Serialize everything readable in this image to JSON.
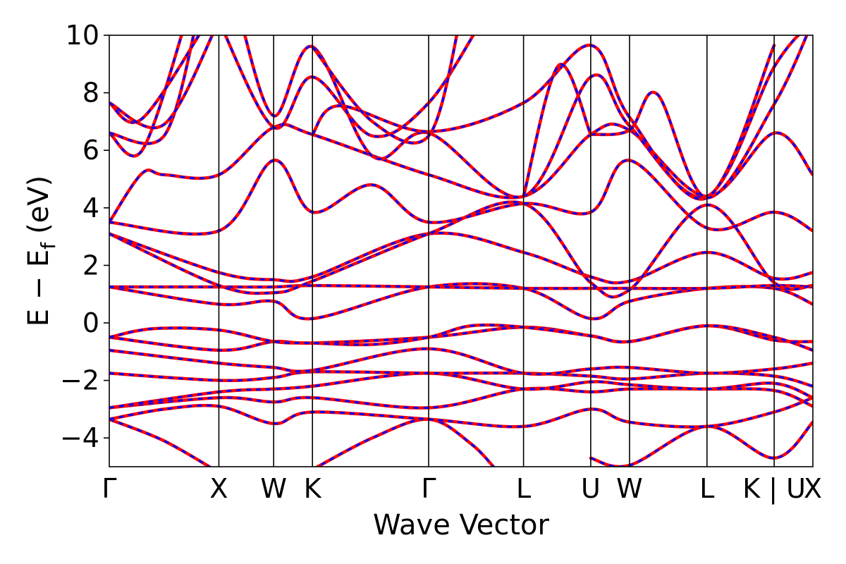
{
  "chart_data": {
    "type": "line",
    "title": "",
    "xlabel": "Wave Vector",
    "ylabel_main": "E − E",
    "ylabel_sub": "f",
    "ylabel_unit": "(eV)",
    "ylim": [
      -5,
      10
    ],
    "yticks": [
      -4,
      -2,
      0,
      2,
      4,
      6,
      8,
      10
    ],
    "ytick_labels": [
      "−4",
      "−2",
      "0",
      "2",
      "4",
      "6",
      "8",
      "10"
    ],
    "kpath": [
      {
        "label": "Γ",
        "k": 0.0
      },
      {
        "label": "X",
        "k": 1.0
      },
      {
        "label": "W",
        "k": 1.5
      },
      {
        "label": "K",
        "k": 1.854
      },
      {
        "label": "Γ",
        "k": 2.914
      },
      {
        "label": "L",
        "k": 3.78
      },
      {
        "label": "U",
        "k": 4.393
      },
      {
        "label": "W",
        "k": 4.747
      },
      {
        "label": "L",
        "k": 5.454
      },
      {
        "label": "K | U",
        "k": 6.067
      },
      {
        "label": "X",
        "k": 6.42
      }
    ],
    "kmax": 6.42,
    "series": [
      {
        "color": "#ff0000",
        "style": "solid",
        "bands": [
          [
            [
              0,
              -3.35
            ],
            [
              0.5,
              -4.1
            ],
            [
              1,
              -5.2
            ]
          ],
          [
            [
              1.854,
              -5.1
            ],
            [
              2.4,
              -4.0
            ],
            [
              2.914,
              -3.35
            ],
            [
              3.3,
              -4.2
            ],
            [
              3.55,
              -5.2
            ]
          ],
          [
            [
              4.393,
              -4.7
            ],
            [
              4.747,
              -4.95
            ],
            [
              5.454,
              -3.6
            ],
            [
              6.067,
              -4.7
            ],
            [
              6.42,
              -3.45
            ]
          ],
          [
            [
              0,
              -3.35
            ],
            [
              0.5,
              -3.0
            ],
            [
              1,
              -2.9
            ],
            [
              1.5,
              -3.5
            ],
            [
              1.854,
              -3.1
            ],
            [
              2.914,
              -3.35
            ],
            [
              3.78,
              -3.6
            ],
            [
              4.393,
              -3.0
            ],
            [
              4.747,
              -3.45
            ],
            [
              5.454,
              -3.6
            ],
            [
              6.067,
              -3.1
            ],
            [
              6.42,
              -2.6
            ]
          ],
          [
            [
              0,
              -2.95
            ],
            [
              1,
              -2.6
            ],
            [
              1.5,
              -2.75
            ],
            [
              1.854,
              -2.6
            ],
            [
              2.914,
              -2.95
            ],
            [
              3.78,
              -2.3
            ],
            [
              4.393,
              -2.4
            ],
            [
              4.747,
              -2.3
            ],
            [
              5.454,
              -2.3
            ],
            [
              6.067,
              -2.35
            ],
            [
              6.42,
              -2.9
            ]
          ],
          [
            [
              0,
              -2.95
            ],
            [
              1,
              -2.4
            ],
            [
              1.5,
              -2.3
            ],
            [
              1.854,
              -2.2
            ],
            [
              2.914,
              -1.75
            ],
            [
              3.78,
              -2.3
            ],
            [
              4.393,
              -2.05
            ],
            [
              4.747,
              -2.15
            ],
            [
              5.454,
              -2.3
            ],
            [
              6.067,
              -2.1
            ],
            [
              6.42,
              -2.6
            ]
          ],
          [
            [
              0,
              -1.75
            ],
            [
              1,
              -2.0
            ],
            [
              1.5,
              -1.9
            ],
            [
              1.854,
              -1.7
            ],
            [
              2.914,
              -1.75
            ],
            [
              3.78,
              -1.75
            ],
            [
              4.393,
              -1.85
            ],
            [
              4.747,
              -1.95
            ],
            [
              5.454,
              -1.75
            ],
            [
              6.067,
              -1.85
            ],
            [
              6.42,
              -2.2
            ]
          ],
          [
            [
              0,
              -0.95
            ],
            [
              1,
              -1.4
            ],
            [
              1.5,
              -1.55
            ],
            [
              1.854,
              -1.65
            ],
            [
              2.914,
              -0.9
            ],
            [
              3.78,
              -1.75
            ],
            [
              4.393,
              -1.6
            ],
            [
              4.747,
              -1.55
            ],
            [
              5.454,
              -1.75
            ],
            [
              6.067,
              -1.6
            ],
            [
              6.42,
              -1.4
            ]
          ],
          [
            [
              0,
              -0.5
            ],
            [
              1,
              -0.95
            ],
            [
              1.5,
              -0.65
            ],
            [
              1.854,
              -0.7
            ],
            [
              2.914,
              -0.5
            ],
            [
              3.78,
              -0.15
            ],
            [
              4.393,
              -0.45
            ],
            [
              4.747,
              -0.65
            ],
            [
              5.454,
              -0.1
            ],
            [
              6.067,
              -0.6
            ],
            [
              6.42,
              -0.65
            ]
          ],
          [
            [
              0,
              -0.5
            ],
            [
              0.4,
              -0.2
            ],
            [
              1,
              -0.25
            ],
            [
              1.5,
              -0.65
            ],
            [
              1.854,
              -0.7
            ],
            [
              2.4,
              -0.75
            ],
            [
              2.914,
              -0.5
            ],
            [
              3.3,
              -0.1
            ],
            [
              3.78,
              -0.15
            ],
            [
              4.393,
              -0.45
            ],
            [
              4.747,
              -0.65
            ],
            [
              5.454,
              -0.1
            ],
            [
              6.067,
              -0.5
            ],
            [
              6.42,
              -0.95
            ]
          ],
          [
            [
              0,
              1.25
            ],
            [
              1,
              0.65
            ],
            [
              1.5,
              0.75
            ],
            [
              1.854,
              0.15
            ],
            [
              2.914,
              1.25
            ],
            [
              3.78,
              1.2
            ],
            [
              4.393,
              0.15
            ],
            [
              4.747,
              0.75
            ],
            [
              5.454,
              1.2
            ],
            [
              6.067,
              1.2
            ],
            [
              6.42,
              0.65
            ]
          ],
          [
            [
              0,
              1.25
            ],
            [
              1,
              1.25
            ],
            [
              1.5,
              1.25
            ],
            [
              1.854,
              1.3
            ],
            [
              2.914,
              1.25
            ],
            [
              3.78,
              1.2
            ],
            [
              4.393,
              1.2
            ],
            [
              4.747,
              1.2
            ],
            [
              5.454,
              1.2
            ],
            [
              6.067,
              1.3
            ],
            [
              6.42,
              1.25
            ]
          ],
          [
            [
              0,
              3.1
            ],
            [
              1,
              1.75
            ],
            [
              1.5,
              1.5
            ],
            [
              1.854,
              1.6
            ],
            [
              2.914,
              3.1
            ],
            [
              3.78,
              2.45
            ],
            [
              4.393,
              1.6
            ],
            [
              4.747,
              1.45
            ],
            [
              5.454,
              2.45
            ],
            [
              6.067,
              1.55
            ],
            [
              6.42,
              1.75
            ]
          ],
          [
            [
              0,
              3.1
            ],
            [
              1,
              1.3
            ],
            [
              1.5,
              1.05
            ],
            [
              1.854,
              1.45
            ],
            [
              2.914,
              3.1
            ],
            [
              3.78,
              4.15
            ],
            [
              4.393,
              1.4
            ],
            [
              4.747,
              1.15
            ],
            [
              5.454,
              4.1
            ],
            [
              6.067,
              1.4
            ],
            [
              6.42,
              1.3
            ]
          ],
          [
            [
              0,
              3.5
            ],
            [
              0.3,
              5.2
            ],
            [
              0.5,
              5.15
            ],
            [
              1,
              5.15
            ],
            [
              1.5,
              6.8
            ],
            [
              1.854,
              6.55
            ],
            [
              2.914,
              5.15
            ],
            [
              3.78,
              4.4
            ],
            [
              4.393,
              6.55
            ],
            [
              4.747,
              6.7
            ],
            [
              5.454,
              4.4
            ],
            [
              6.067,
              6.6
            ],
            [
              6.42,
              5.15
            ]
          ],
          [
            [
              0,
              3.5
            ],
            [
              1,
              3.2
            ],
            [
              1.5,
              5.65
            ],
            [
              1.854,
              3.85
            ],
            [
              2.4,
              4.8
            ],
            [
              2.914,
              3.5
            ],
            [
              3.78,
              4.15
            ],
            [
              4.393,
              3.85
            ],
            [
              4.747,
              5.65
            ],
            [
              5.454,
              3.3
            ],
            [
              6.067,
              3.85
            ],
            [
              6.42,
              3.2
            ]
          ],
          [
            [
              0,
              6.6
            ],
            [
              0.3,
              6.0
            ],
            [
              0.7,
              10.5
            ]
          ],
          [
            [
              0,
              6.6
            ],
            [
              0.5,
              6.5
            ],
            [
              0.8,
              10.5
            ]
          ],
          [
            [
              0,
              7.65
            ],
            [
              0.3,
              7.1
            ],
            [
              0.9,
              10.5
            ]
          ],
          [
            [
              0,
              7.65
            ],
            [
              0.5,
              6.9
            ],
            [
              1,
              10.5
            ]
          ],
          [
            [
              1,
              10.5
            ],
            [
              1.5,
              6.8
            ],
            [
              1.854,
              8.55
            ],
            [
              2.4,
              6.5
            ],
            [
              2.914,
              7.65
            ],
            [
              3.4,
              10.5
            ]
          ],
          [
            [
              1.2,
              10.5
            ],
            [
              1.5,
              7.2
            ],
            [
              1.854,
              9.6
            ],
            [
              2.4,
              5.8
            ],
            [
              2.914,
              6.6
            ],
            [
              3.78,
              4.4
            ],
            [
              4.393,
              8.55
            ],
            [
              4.747,
              6.85
            ],
            [
              5.454,
              4.4
            ],
            [
              6.067,
              8.9
            ],
            [
              6.42,
              10.5
            ]
          ],
          [
            [
              1.854,
              6.55
            ],
            [
              2.1,
              7.55
            ],
            [
              2.914,
              6.65
            ],
            [
              3.78,
              7.65
            ],
            [
              4.393,
              9.65
            ],
            [
              4.747,
              7.15
            ],
            [
              5.454,
              4.35
            ],
            [
              6.067,
              9.65
            ]
          ],
          [
            [
              1.854,
              9.6
            ],
            [
              2.4,
              7.0
            ],
            [
              2.914,
              6.5
            ],
            [
              3.2,
              10.5
            ]
          ],
          [
            [
              4.393,
              6.55
            ],
            [
              4.747,
              6.7
            ],
            [
              5.0,
              7.95
            ],
            [
              5.454,
              4.35
            ],
            [
              6.067,
              7.6
            ],
            [
              6.42,
              10.5
            ]
          ],
          [
            [
              3.78,
              4.4
            ],
            [
              4.1,
              8.95
            ],
            [
              4.393,
              6.55
            ]
          ]
        ]
      },
      {
        "color": "#0000ff",
        "style": "dashed"
      }
    ]
  }
}
